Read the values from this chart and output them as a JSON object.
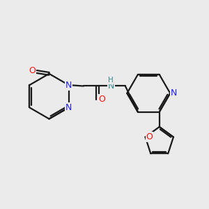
{
  "bg_color": "#ebebeb",
  "bond_color": "#1a1a1a",
  "N_color": "#2020ff",
  "O_color": "#ff1010",
  "NH_color": "#3a8a8a",
  "lw": 1.6,
  "figsize": [
    3.0,
    3.0
  ],
  "dpi": 100,
  "xlim": [
    0,
    10
  ],
  "ylim": [
    0,
    10
  ]
}
